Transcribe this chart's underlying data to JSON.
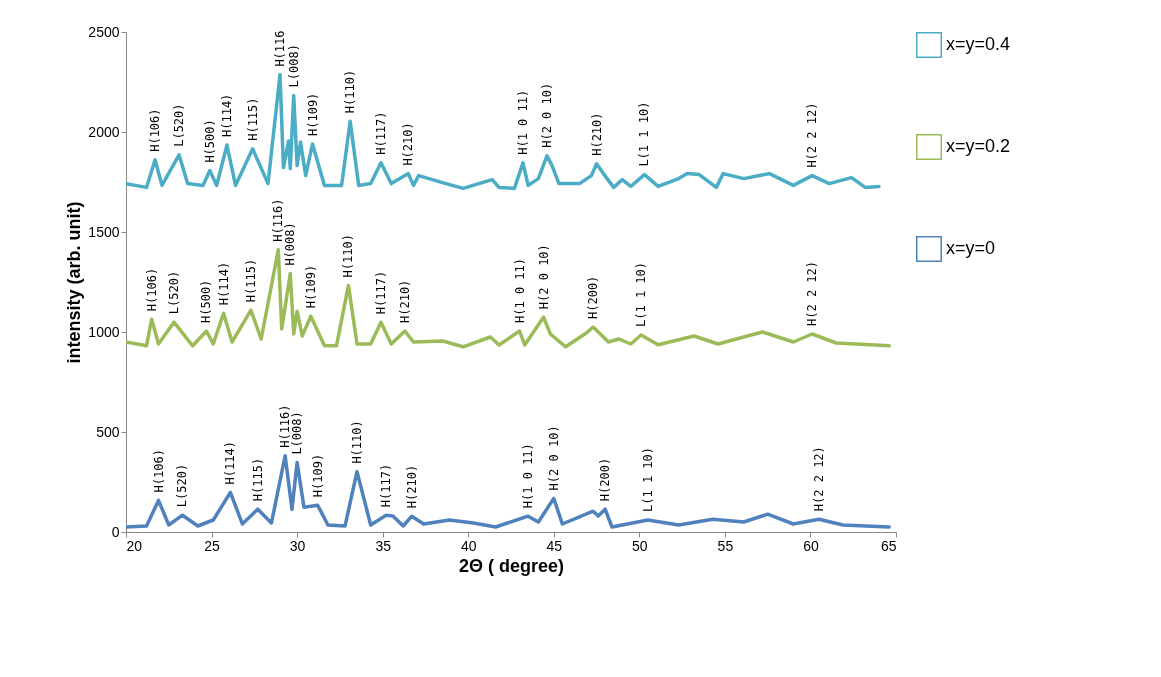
{
  "chart_data": {
    "type": "line",
    "xlabel": "2Θ ( degree)",
    "ylabel": "intensity (arb. unit)",
    "xlim": [
      20,
      65
    ],
    "xticks": [
      20,
      25,
      30,
      35,
      40,
      45,
      50,
      55,
      60,
      65
    ],
    "ylim": [
      0,
      2500
    ],
    "yticks": [
      0,
      500,
      1000,
      1500,
      2000,
      2500
    ],
    "legend": "right",
    "line_style": "solid",
    "series": [
      {
        "name": "x=y=0.4",
        "color": "#4bacc6",
        "x": [
          20.0,
          21.2,
          21.7,
          22.1,
          23.1,
          23.6,
          24.5,
          24.9,
          25.3,
          25.9,
          26.4,
          27.4,
          28.3,
          29.0,
          29.2,
          29.5,
          29.6,
          29.8,
          30.0,
          30.2,
          30.5,
          30.9,
          31.6,
          32.6,
          33.1,
          33.6,
          34.3,
          34.9,
          35.5,
          36.5,
          36.8,
          37.1,
          38.7,
          39.7,
          41.4,
          41.8,
          42.7,
          43.2,
          43.5,
          44.1,
          44.6,
          44.9,
          45.3,
          46.5,
          47.2,
          47.5,
          47.9,
          48.5,
          49.0,
          49.5,
          50.3,
          51.1,
          52.3,
          52.8,
          53.5,
          54.5,
          54.9,
          56.1,
          57.6,
          59.0,
          60.1,
          61.1,
          62.4,
          63.2,
          64.0
        ],
        "values": [
          1742,
          1723,
          1861,
          1733,
          1886,
          1742,
          1733,
          1807,
          1733,
          1935,
          1733,
          1916,
          1742,
          2287,
          1822,
          1955,
          1817,
          2183,
          1832,
          1950,
          1782,
          1940,
          1733,
          1733,
          2054,
          1733,
          1742,
          1846,
          1742,
          1792,
          1733,
          1782,
          1742,
          1718,
          1762,
          1723,
          1718,
          1846,
          1733,
          1767,
          1881,
          1832,
          1742,
          1742,
          1782,
          1841,
          1792,
          1723,
          1762,
          1728,
          1787,
          1728,
          1767,
          1792,
          1787,
          1723,
          1792,
          1767,
          1792,
          1733,
          1782,
          1742,
          1772,
          1723,
          1728
        ]
      },
      {
        "name": "x=y=0.2",
        "color": "#9bbb59",
        "x": [
          20.0,
          21.2,
          21.5,
          21.9,
          22.8,
          23.9,
          24.7,
          25.1,
          25.7,
          26.2,
          27.3,
          27.9,
          28.9,
          29.1,
          29.6,
          29.8,
          30.0,
          30.3,
          30.8,
          31.6,
          32.3,
          33.0,
          33.5,
          34.3,
          34.9,
          35.5,
          36.3,
          36.8,
          38.5,
          39.7,
          41.3,
          41.8,
          43.0,
          43.3,
          44.4,
          44.8,
          45.7,
          46.9,
          47.3,
          48.2,
          48.8,
          49.5,
          50.1,
          51.1,
          53.2,
          54.6,
          56.1,
          57.2,
          59.0,
          60.1,
          61.5,
          64.6
        ],
        "values": [
          950,
          931,
          1064,
          940,
          1049,
          931,
          1005,
          940,
          1094,
          950,
          1109,
          965,
          1411,
          1015,
          1292,
          990,
          1104,
          980,
          1079,
          931,
          931,
          1233,
          940,
          940,
          1049,
          940,
          1005,
          950,
          955,
          926,
          975,
          935,
          1005,
          935,
          1074,
          990,
          926,
          995,
          1025,
          950,
          965,
          940,
          985,
          936,
          980,
          940,
          975,
          1000,
          950,
          990,
          945,
          931
        ]
      },
      {
        "name": "x=y=0",
        "color": "#4f81bd",
        "x": [
          20.0,
          21.2,
          21.9,
          22.5,
          23.3,
          24.2,
          25.1,
          26.1,
          26.8,
          27.7,
          28.5,
          29.3,
          29.7,
          30.0,
          30.4,
          31.2,
          31.8,
          32.8,
          33.5,
          34.3,
          35.2,
          35.6,
          36.2,
          36.7,
          37.4,
          38.9,
          40.3,
          41.6,
          43.5,
          44.1,
          45.0,
          45.5,
          47.3,
          47.6,
          48.0,
          48.4,
          50.5,
          52.3,
          54.3,
          56.1,
          57.5,
          59.0,
          60.5,
          61.9,
          64.6
        ],
        "values": [
          25,
          30,
          158,
          35,
          84,
          30,
          60,
          198,
          40,
          114,
          45,
          381,
          114,
          347,
          124,
          134,
          35,
          30,
          302,
          35,
          84,
          80,
          30,
          79,
          40,
          60,
          45,
          25,
          79,
          50,
          168,
          40,
          104,
          80,
          114,
          25,
          60,
          35,
          64,
          50,
          89,
          40,
          64,
          35,
          25
        ]
      }
    ],
    "annotations": [
      {
        "text": "H(106)",
        "x": 21.7,
        "y": 1861
      },
      {
        "text": "L(520)",
        "x": 23.1,
        "y": 1886
      },
      {
        "text": "H(500)",
        "x": 24.9,
        "y": 1807
      },
      {
        "text": "H(114)",
        "x": 25.9,
        "y": 1935
      },
      {
        "text": "H(115)",
        "x": 27.4,
        "y": 1916
      },
      {
        "text": "H(116",
        "x": 29.0,
        "y": 2287
      },
      {
        "text": "L(008)",
        "x": 29.8,
        "y": 2183
      },
      {
        "text": "H(109)",
        "x": 30.9,
        "y": 1940
      },
      {
        "text": "H(110)",
        "x": 33.1,
        "y": 2054
      },
      {
        "text": "H(117)",
        "x": 34.9,
        "y": 1846
      },
      {
        "text": "H(210)",
        "x": 36.5,
        "y": 1792
      },
      {
        "text": "H(1 0 11)",
        "x": 43.2,
        "y": 1846
      },
      {
        "text": "H(2 0 10)",
        "x": 44.6,
        "y": 1881
      },
      {
        "text": "H(210)",
        "x": 47.5,
        "y": 1841
      },
      {
        "text": "L(1 1 10)",
        "x": 50.3,
        "y": 1787
      },
      {
        "text": "H(2 2 12)",
        "x": 60.1,
        "y": 1782
      },
      {
        "text": "H(106)",
        "x": 21.5,
        "y": 1064
      },
      {
        "text": "L(520)",
        "x": 22.8,
        "y": 1049
      },
      {
        "text": "H(500)",
        "x": 24.7,
        "y": 1005
      },
      {
        "text": "H(114)",
        "x": 25.7,
        "y": 1094
      },
      {
        "text": "H(115)",
        "x": 27.3,
        "y": 1109
      },
      {
        "text": "H(116)",
        "x": 28.9,
        "y": 1411
      },
      {
        "text": "H(008)",
        "x": 29.6,
        "y": 1292
      },
      {
        "text": "H(109)",
        "x": 30.8,
        "y": 1079
      },
      {
        "text": "H(110)",
        "x": 33.0,
        "y": 1233
      },
      {
        "text": "H(117)",
        "x": 34.9,
        "y": 1049
      },
      {
        "text": "H(210)",
        "x": 36.3,
        "y": 1005
      },
      {
        "text": "H(1 0 11)",
        "x": 43.0,
        "y": 1005
      },
      {
        "text": "H(2 0 10)",
        "x": 44.4,
        "y": 1074
      },
      {
        "text": "H(200)",
        "x": 47.3,
        "y": 1025
      },
      {
        "text": "L(1 1 10)",
        "x": 50.1,
        "y": 985
      },
      {
        "text": "H(2 2 12)",
        "x": 60.1,
        "y": 990
      },
      {
        "text": "H(106)",
        "x": 21.9,
        "y": 158
      },
      {
        "text": "L(520)",
        "x": 23.3,
        "y": 84
      },
      {
        "text": "H(114)",
        "x": 26.1,
        "y": 198
      },
      {
        "text": "H(115)",
        "x": 27.7,
        "y": 114
      },
      {
        "text": "H(116)",
        "x": 29.3,
        "y": 381
      },
      {
        "text": "L(008)",
        "x": 30.0,
        "y": 347
      },
      {
        "text": "H(109)",
        "x": 31.2,
        "y": 134
      },
      {
        "text": "H(110)",
        "x": 33.5,
        "y": 302
      },
      {
        "text": "H(117)",
        "x": 35.2,
        "y": 84
      },
      {
        "text": "H(210)",
        "x": 36.7,
        "y": 79
      },
      {
        "text": "H(1 0 11)",
        "x": 43.5,
        "y": 79
      },
      {
        "text": "H(2 0 10)",
        "x": 45.0,
        "y": 168
      },
      {
        "text": "H(200)",
        "x": 48.0,
        "y": 114
      },
      {
        "text": "L(1 1 10)",
        "x": 50.5,
        "y": 60
      },
      {
        "text": "H(2 2 12)",
        "x": 60.5,
        "y": 64
      }
    ]
  }
}
